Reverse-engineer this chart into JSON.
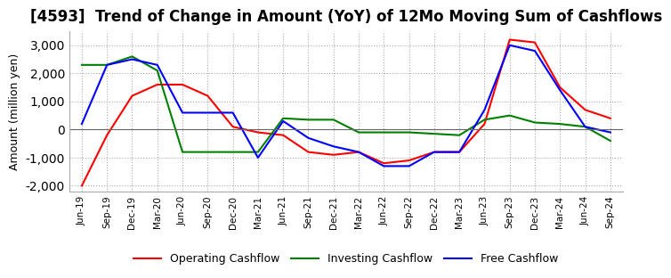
{
  "title": "[4593]  Trend of Change in Amount (YoY) of 12Mo Moving Sum of Cashflows",
  "ylabel": "Amount (million yen)",
  "ylim": [
    -2200,
    3500
  ],
  "yticks": [
    -2000,
    -1000,
    0,
    1000,
    2000,
    3000
  ],
  "x_labels": [
    "Jun-19",
    "Sep-19",
    "Dec-19",
    "Mar-20",
    "Jun-20",
    "Sep-20",
    "Dec-20",
    "Mar-21",
    "Jun-21",
    "Sep-21",
    "Dec-21",
    "Mar-22",
    "Jun-22",
    "Sep-22",
    "Dec-22",
    "Mar-23",
    "Jun-23",
    "Sep-23",
    "Dec-23",
    "Mar-24",
    "Jun-24",
    "Sep-24"
  ],
  "operating": [
    -2000,
    -200,
    1200,
    1600,
    1600,
    1200,
    100,
    -100,
    -200,
    -800,
    -900,
    -800,
    -1200,
    -1100,
    -800,
    -800,
    200,
    3200,
    3100,
    1500,
    700,
    400
  ],
  "investing": [
    2300,
    2300,
    2600,
    2100,
    -800,
    -800,
    -800,
    -800,
    400,
    350,
    350,
    -100,
    -100,
    -100,
    -150,
    -200,
    350,
    500,
    250,
    200,
    100,
    -400
  ],
  "free": [
    200,
    2300,
    2500,
    2300,
    600,
    600,
    600,
    -1000,
    300,
    -300,
    -600,
    -800,
    -1300,
    -1300,
    -800,
    -800,
    700,
    3000,
    2800,
    1400,
    100,
    -100
  ],
  "op_color": "#FF0000",
  "inv_color": "#008000",
  "free_color": "#0000FF",
  "bg_color": "#FFFFFF",
  "title_fontsize": 12,
  "axis_fontsize": 9,
  "legend_fontsize": 9
}
